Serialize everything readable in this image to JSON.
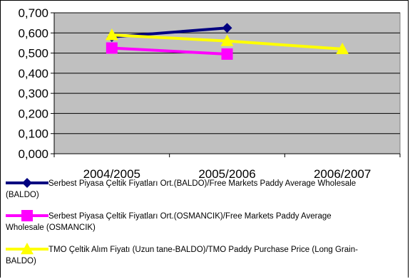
{
  "chart_data": {
    "type": "line",
    "categories": [
      "2004/2005",
      "2005/2006",
      "2006/2007"
    ],
    "ylim": [
      0,
      0.7
    ],
    "y_ticks": [
      "0,000",
      "0,100",
      "0,200",
      "0,300",
      "0,400",
      "0,500",
      "0,600",
      "0,700"
    ],
    "grid": true,
    "legend_position": "bottom",
    "plot_background": "#c0c0c0",
    "series": [
      {
        "name": "Serbest Piyasa Çeltik Fiyatları Ort.(BALDO)/Free Markets Paddy Average Wholesale (BALDO)",
        "legend_lines": [
          "Serbest Piyasa Çeltik Fiyatları Ort.(BALDO)/Free Markets Paddy Average Wholesale",
          "(BALDO)"
        ],
        "values": [
          0.58,
          0.625,
          null
        ],
        "color": "#000080",
        "marker": "diamond"
      },
      {
        "name": "Serbest Piyasa Çeltik Fiyatları Ort.(OSMANCIK)/Free Markets Paddy Average Wholesale (OSMANCIK)",
        "legend_lines": [
          "Serbest Piyasa Çeltik Fiyatları Ort.(OSMANCIK)/Free Markets Paddy Average",
          "Wholesale (OSMANCIK)"
        ],
        "values": [
          0.525,
          0.495,
          null
        ],
        "color": "#ff00ff",
        "marker": "square"
      },
      {
        "name": "TMO Çeltik Alım Fiyatı (Uzun tane-BALDO)/TMO Paddy Purchase Price (Long Grain-BALDO)",
        "legend_lines": [
          "TMO Çeltik Alım Fiyatı (Uzun tane-BALDO)/TMO Paddy Purchase Price (Long Grain-",
          "BALDO)"
        ],
        "values": [
          0.59,
          0.56,
          0.52
        ],
        "color": "#ffff00",
        "marker": "triangle"
      }
    ]
  }
}
